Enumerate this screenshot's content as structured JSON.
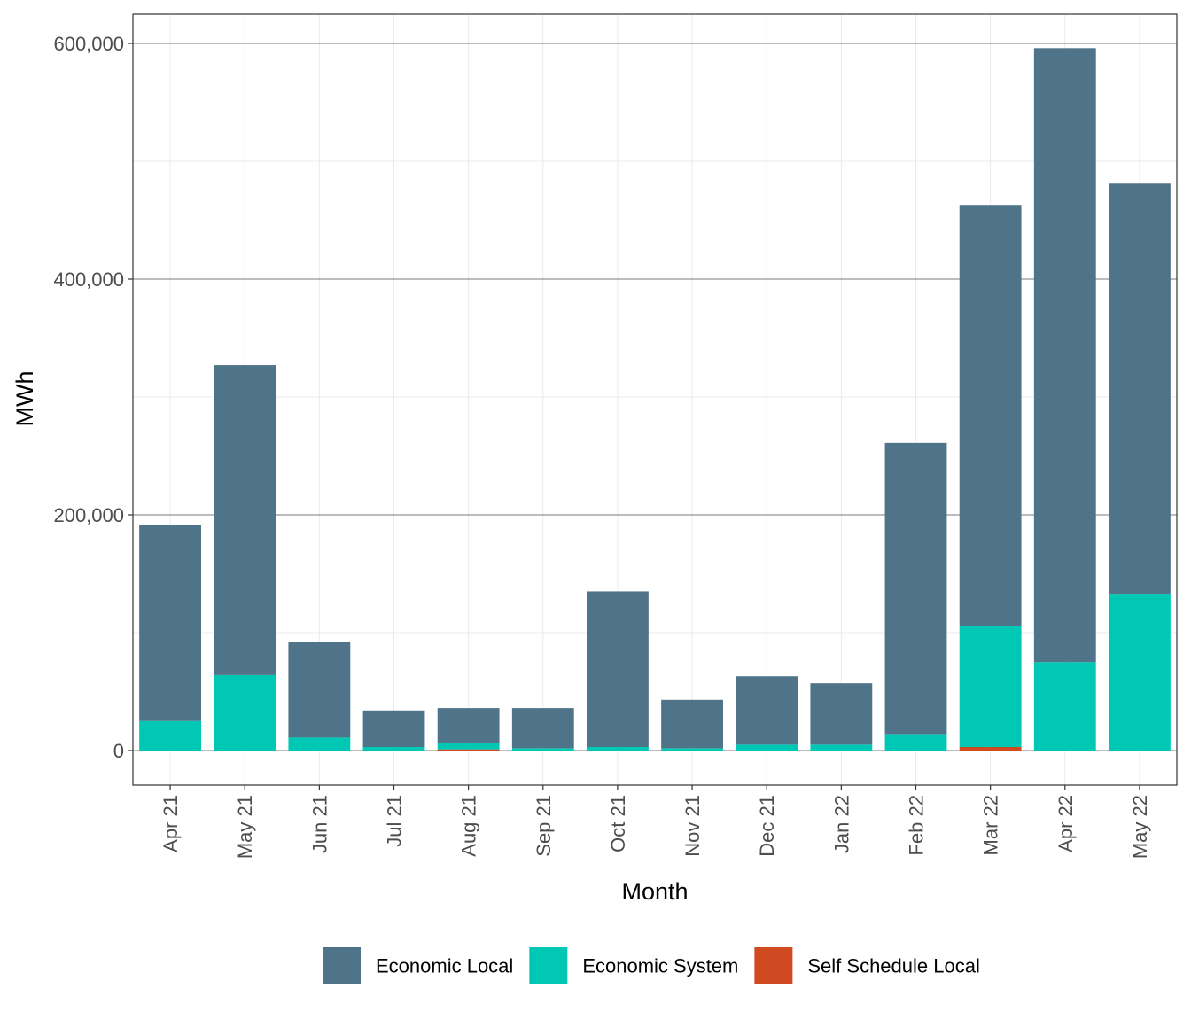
{
  "chart_data": {
    "type": "bar",
    "stacked": true,
    "title": "",
    "xlabel": "Month",
    "ylabel": "MWh",
    "ylim": [
      -29000,
      625000
    ],
    "yticks": [
      0,
      200000,
      400000,
      600000
    ],
    "ytick_labels": [
      "0",
      "200,000",
      "400,000",
      "600,000"
    ],
    "grid": true,
    "legend_position": "bottom",
    "categories": [
      "Apr 21",
      "May 21",
      "Jun 21",
      "Jul 21",
      "Aug 21",
      "Sep 21",
      "Oct 21",
      "Nov 21",
      "Dec 21",
      "Jan 22",
      "Feb 22",
      "Mar 22",
      "Apr 22",
      "May 22"
    ],
    "series": [
      {
        "name": "Self Schedule Local",
        "color": "#d04a21",
        "values": [
          0,
          0,
          0,
          0,
          1000,
          0,
          0,
          0,
          0,
          0,
          0,
          3000,
          0,
          0
        ]
      },
      {
        "name": "Economic System",
        "color": "#00c8b4",
        "values": [
          25000,
          64000,
          11000,
          3000,
          5000,
          2000,
          3000,
          2000,
          5000,
          5000,
          14000,
          103000,
          75000,
          133000
        ]
      },
      {
        "name": "Economic Local",
        "color": "#4f7388",
        "values": [
          166000,
          263000,
          81000,
          31000,
          30000,
          34000,
          132000,
          41000,
          58000,
          52000,
          247000,
          357000,
          521000,
          348000
        ]
      }
    ],
    "legend_order": [
      "Economic Local",
      "Economic System",
      "Self Schedule Local"
    ]
  }
}
